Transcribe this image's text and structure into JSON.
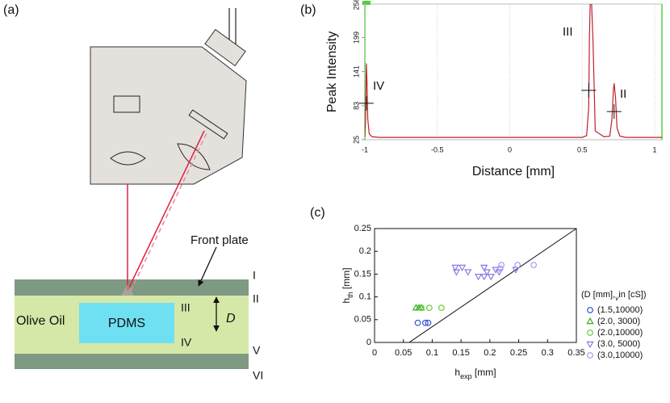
{
  "panel_labels": [
    "(a)",
    "(b)",
    "(c)"
  ],
  "diagram": {
    "pdms": "PDMS",
    "olive_oil": "Olive Oil",
    "front_plate": "Front plate",
    "d": "D",
    "layers": [
      "I",
      "II",
      "III",
      "IV",
      "V",
      "VI"
    ]
  },
  "chart_data": [
    {
      "type": "line",
      "xlabel": "Distance [mm]",
      "ylabel": "Peak Intensity",
      "xlim": [
        -1,
        1.05
      ],
      "ylim": [
        25,
        256
      ],
      "xticks": [
        -1,
        -0.5,
        0,
        0.5,
        1
      ],
      "yticks": [
        25,
        83,
        141,
        199,
        256
      ],
      "grid": true,
      "color": "#c0202a",
      "x": [
        -1.0,
        -0.995,
        -0.99,
        -0.985,
        -0.98,
        -0.97,
        -0.95,
        -0.9,
        0,
        0.5,
        0.53,
        0.545,
        0.55,
        0.555,
        0.565,
        0.575,
        0.59,
        0.65,
        0.69,
        0.705,
        0.715,
        0.72,
        0.73,
        0.74,
        0.76,
        0.8,
        1.05
      ],
      "values": [
        30,
        60,
        155,
        120,
        60,
        35,
        30,
        29,
        29,
        29,
        32,
        80,
        200,
        256,
        256,
        190,
        40,
        30,
        31,
        60,
        110,
        121,
        95,
        45,
        31,
        29,
        29
      ],
      "annotations": [
        "IV",
        "III",
        "II"
      ],
      "markers": {
        "x": [
          -0.99,
          0.545,
          0.72
        ],
        "values": [
          87,
          109,
          73
        ]
      }
    },
    {
      "type": "scatter",
      "xlabel": [
        "h",
        "exp",
        " [mm]"
      ],
      "ylabel": [
        "h",
        "th",
        " [mm]"
      ],
      "xlim": [
        0,
        0.35
      ],
      "ylim": [
        0,
        0.25
      ],
      "xticks": [
        0,
        0.05,
        0.1,
        0.15,
        0.2,
        0.25,
        0.3,
        0.35
      ],
      "yticks": [
        0,
        0.05,
        0.1,
        0.15,
        0.2,
        0.25
      ],
      "legend_title": [
        "(D [mm],",
        "v",
        "in",
        " [cS])"
      ],
      "fit_line": {
        "x": [
          0.06,
          0.35
        ],
        "values": [
          0,
          0.25
        ],
        "color": "#111111"
      },
      "series": [
        {
          "name": "(1.5,10000)",
          "color": "#3050d0",
          "marker": "circle",
          "x": [
            0.075,
            0.088,
            0.093
          ],
          "values": [
            0.043,
            0.043,
            0.043
          ]
        },
        {
          "name": "(2.0, 3000)",
          "color": "#30b020",
          "marker": "triangle",
          "x": [
            0.072,
            0.077,
            0.081
          ],
          "values": [
            0.076,
            0.076,
            0.076
          ]
        },
        {
          "name": "(2.0,10000)",
          "color": "#60d030",
          "marker": "circle",
          "x": [
            0.081,
            0.095,
            0.116
          ],
          "values": [
            0.076,
            0.076,
            0.076
          ]
        },
        {
          "name": "(3.0, 5000)",
          "color": "#8a7ae0",
          "marker": "down",
          "x": [
            0.14,
            0.152,
            0.142,
            0.162,
            0.18,
            0.19,
            0.195,
            0.202,
            0.21,
            0.216,
            0.245,
            0.19
          ],
          "values": [
            0.165,
            0.165,
            0.155,
            0.155,
            0.145,
            0.145,
            0.155,
            0.145,
            0.16,
            0.155,
            0.16,
            0.165
          ]
        },
        {
          "name": "(3.0,10000)",
          "color": "#a898ec",
          "marker": "circle",
          "x": [
            0.22,
            0.248,
            0.276,
            0.218
          ],
          "values": [
            0.17,
            0.17,
            0.17,
            0.162
          ]
        }
      ]
    }
  ]
}
